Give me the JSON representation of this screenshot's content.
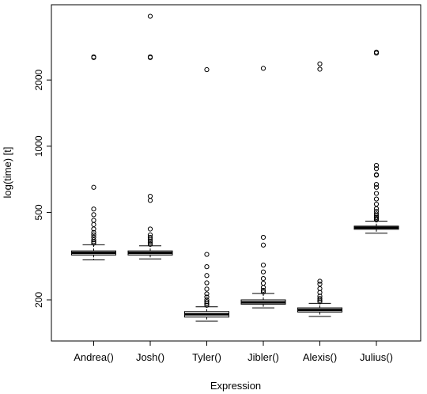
{
  "chart_data": {
    "type": "box",
    "xlabel": "Expression",
    "ylabel": "log(time) [t]",
    "y_scale": "log",
    "ylim": [
      130,
      4400
    ],
    "y_ticks": [
      200,
      500,
      1000,
      2000
    ],
    "y_tick_labels": [
      "200",
      "500",
      "1000",
      "2000"
    ],
    "categories": [
      "Andrea()",
      "Josh()",
      "Tyler()",
      "Jibler()",
      "Alexis()",
      "Julius()"
    ],
    "boxes": [
      {
        "name": "Andrea()",
        "whisker_low": 304,
        "q1": 320,
        "median": 327,
        "q3": 334,
        "whisker_high": 356,
        "outliers": [
          2550,
          2530,
          650,
          518,
          488,
          460,
          440,
          420,
          405,
          395,
          385,
          375,
          368,
          362
        ]
      },
      {
        "name": "Josh()",
        "whisker_low": 307,
        "q1": 320,
        "median": 327,
        "q3": 334,
        "whisker_high": 352,
        "outliers": [
          3900,
          2550,
          2530,
          592,
          567,
          420,
          395,
          385,
          377,
          370,
          364,
          358
        ]
      },
      {
        "name": "Tyler()",
        "whisker_low": 160,
        "q1": 167,
        "median": 172,
        "q3": 177,
        "whisker_high": 186,
        "outliers": [
          2230,
          322,
          283,
          258,
          239,
          224,
          213,
          206,
          200,
          196,
          192,
          189
        ]
      },
      {
        "name": "Jibler()",
        "whisker_low": 184,
        "q1": 191,
        "median": 195,
        "q3": 200,
        "whisker_high": 214,
        "outliers": [
          2260,
          385,
          355,
          288,
          268,
          250,
          238,
          228,
          221,
          217
        ]
      },
      {
        "name": "Alexis()",
        "whisker_low": 168,
        "q1": 176,
        "median": 180,
        "q3": 184,
        "whisker_high": 193,
        "outliers": [
          2370,
          2240,
          243,
          236,
          225,
          216,
          208,
          203,
          199,
          196
        ]
      },
      {
        "name": "Julius()",
        "whisker_low": 402,
        "q1": 419,
        "median": 426,
        "q3": 433,
        "whisker_high": 456,
        "outliers": [
          2680,
          2650,
          818,
          790,
          742,
          738,
          670,
          650,
          610,
          575,
          545,
          520,
          505,
          492,
          482,
          474,
          468,
          462
        ]
      }
    ]
  }
}
